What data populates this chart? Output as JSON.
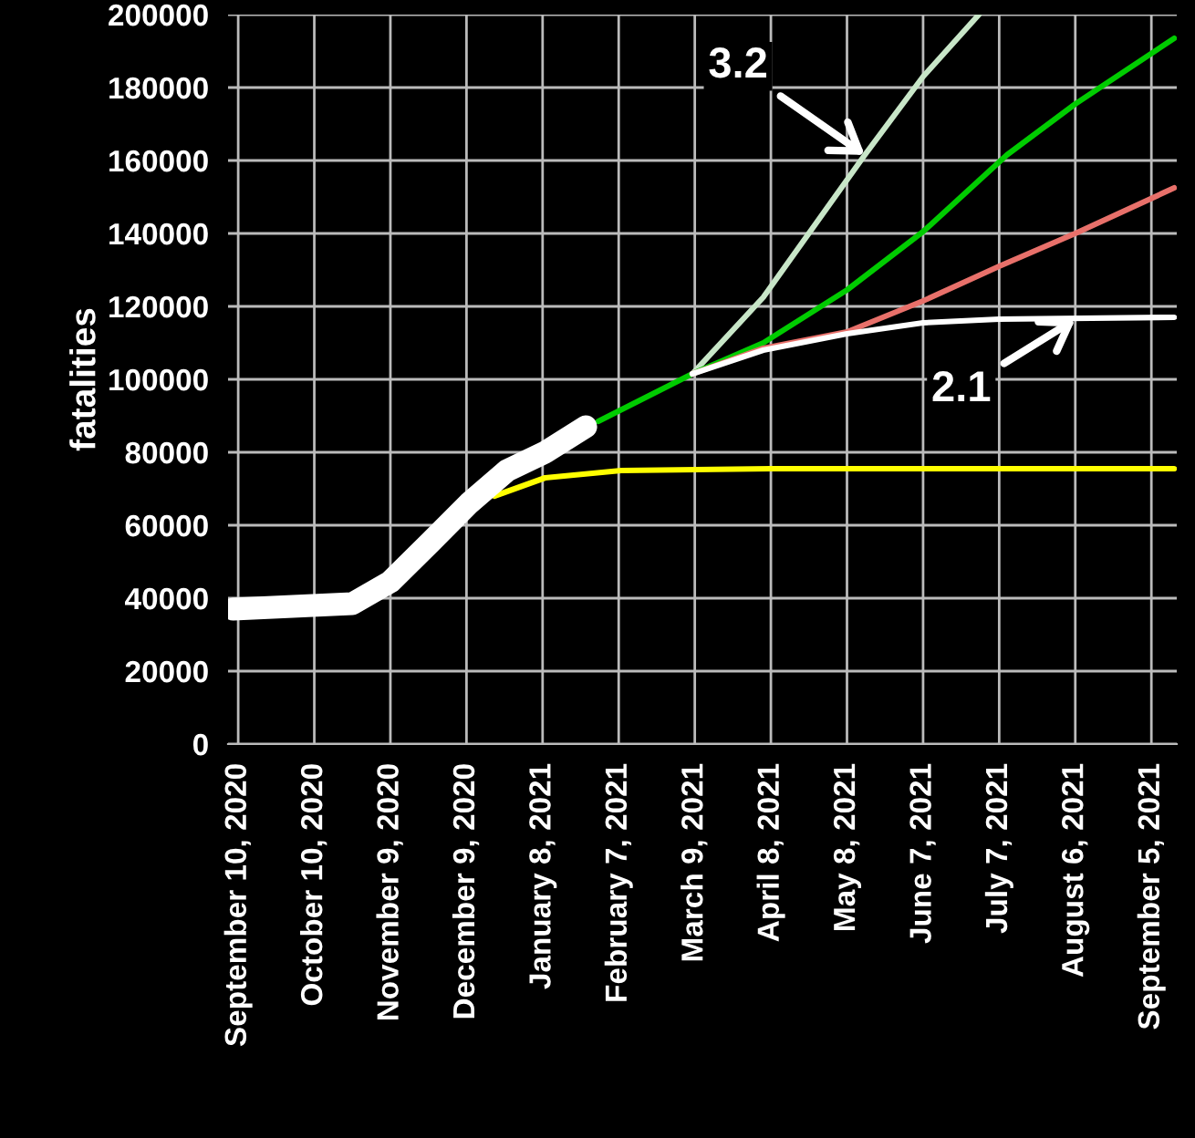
{
  "chart_data": {
    "type": "line",
    "ylabel": "fatalities",
    "xlim": [
      "2020-09-06",
      "2021-09-15"
    ],
    "ylim": [
      0,
      200000
    ],
    "yticks": [
      0,
      20000,
      40000,
      60000,
      80000,
      100000,
      120000,
      140000,
      160000,
      180000,
      200000
    ],
    "xticks": [
      {
        "value": "2020-09-10",
        "label": "September 10, 2020"
      },
      {
        "value": "2020-10-10",
        "label": "October 10, 2020"
      },
      {
        "value": "2020-11-09",
        "label": "November 9, 2020"
      },
      {
        "value": "2020-12-09",
        "label": "December 9, 2020"
      },
      {
        "value": "2021-01-08",
        "label": "January 8, 2021"
      },
      {
        "value": "2021-02-07",
        "label": "February 7, 2021"
      },
      {
        "value": "2021-03-09",
        "label": "March 9, 2021"
      },
      {
        "value": "2021-04-08",
        "label": "April 8, 2021"
      },
      {
        "value": "2021-05-08",
        "label": "May 8, 2021"
      },
      {
        "value": "2021-06-07",
        "label": "June 7, 2021"
      },
      {
        "value": "2021-07-07",
        "label": "July 7, 2021"
      },
      {
        "value": "2021-08-06",
        "label": "August 6, 2021"
      },
      {
        "value": "2021-09-05",
        "label": "September 5, 2021"
      }
    ],
    "grid": true,
    "series": [
      {
        "color": "#ffff00",
        "x": [
          "2020-12-20",
          "2021-01-09",
          "2021-02-08",
          "2021-04-08",
          "2021-09-14"
        ],
        "values": [
          68000,
          73000,
          75000,
          75500,
          75500
        ]
      },
      {
        "color": "#c8e6c8",
        "x": [
          "2021-03-08",
          "2021-04-05",
          "2021-05-15",
          "2021-06-07",
          "2021-06-29"
        ],
        "values": [
          101500,
          122500,
          161500,
          183000,
          200000
        ]
      },
      {
        "color": "#00cc00",
        "x": [
          "2021-01-30",
          "2021-03-08",
          "2021-04-05",
          "2021-05-08",
          "2021-06-07",
          "2021-07-10",
          "2021-08-06",
          "2021-09-14"
        ],
        "values": [
          88500,
          101500,
          110000,
          124500,
          140500,
          161500,
          175500,
          193500
        ]
      },
      {
        "color": "#e8706a",
        "x": [
          "2021-03-08",
          "2021-04-05",
          "2021-05-08",
          "2021-06-07",
          "2021-07-07",
          "2021-08-06",
          "2021-09-14"
        ],
        "values": [
          101500,
          108500,
          113000,
          121500,
          131000,
          140000,
          152500
        ]
      },
      {
        "color": "#ffffff",
        "x": [
          "2021-03-08",
          "2021-04-05",
          "2021-05-08",
          "2021-06-07",
          "2021-07-07",
          "2021-09-14"
        ],
        "values": [
          101500,
          108000,
          112500,
          115500,
          116500,
          117000
        ]
      },
      {
        "color": "#ffffff",
        "x": [
          "2020-09-08",
          "2020-10-25",
          "2020-11-09",
          "2020-11-25",
          "2020-12-10",
          "2020-12-25",
          "2021-01-09",
          "2021-01-25"
        ],
        "values": [
          37000,
          38500,
          44500,
          55500,
          66000,
          75000,
          80000,
          87000
        ]
      }
    ],
    "annotations": [
      {
        "text": "3.2",
        "x": "2021-05-15",
        "y": 161500
      },
      {
        "text": "2.1",
        "x": "2021-08-06",
        "y": 116500
      }
    ]
  }
}
